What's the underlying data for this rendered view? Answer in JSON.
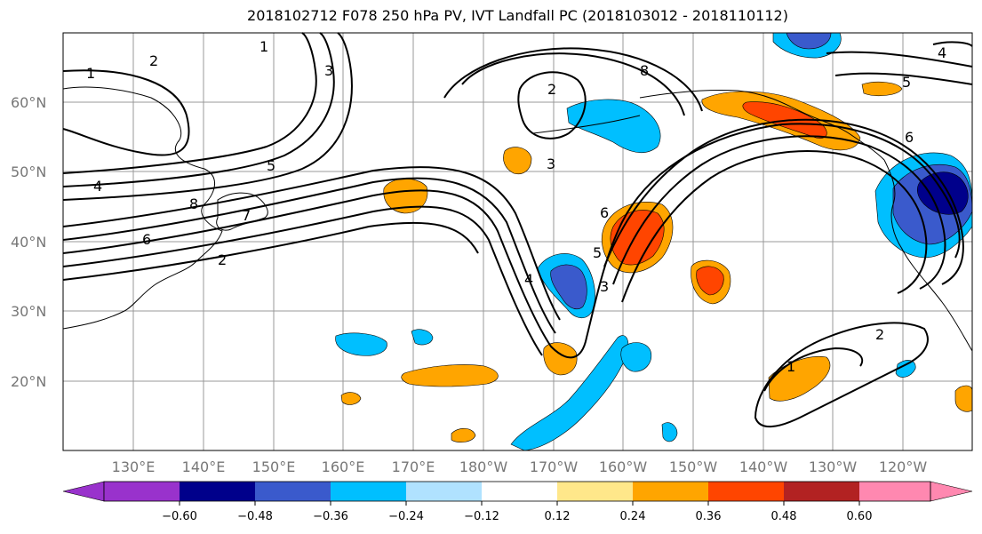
{
  "title": "2018102712 F078 250 hPa PV, IVT Landfall PC (2018103012 - 2018110112)",
  "lat_labels": [
    "60°N",
    "50°N",
    "40°N",
    "30°N",
    "20°N"
  ],
  "lon_labels": [
    "130°E",
    "140°E",
    "150°E",
    "160°E",
    "170°E",
    "180°W",
    "170°W",
    "160°W",
    "150°W",
    "140°W",
    "130°W",
    "120°W"
  ],
  "colorbar": {
    "ticks": [
      "−0.60",
      "−0.48",
      "−0.36",
      "−0.24",
      "−0.12",
      "0.12",
      "0.24",
      "0.36",
      "0.48",
      "0.60"
    ],
    "colors": [
      "#9932cc",
      "#00008b",
      "#3a5acc",
      "#00bfff",
      "#b0e2ff",
      "#ffffff",
      "#ffe78a",
      "#ffa500",
      "#ff4500",
      "#b22222",
      "#ff88b0"
    ]
  },
  "contour_labels": [
    "1",
    "2",
    "3",
    "4",
    "5",
    "6",
    "7",
    "8"
  ],
  "shading_colors": {
    "strong_negative": "#00008b",
    "negative": "#3a5acc",
    "weak_negative": "#00bfff",
    "weak_positive": "#ffa500",
    "positive": "#ff4500"
  }
}
